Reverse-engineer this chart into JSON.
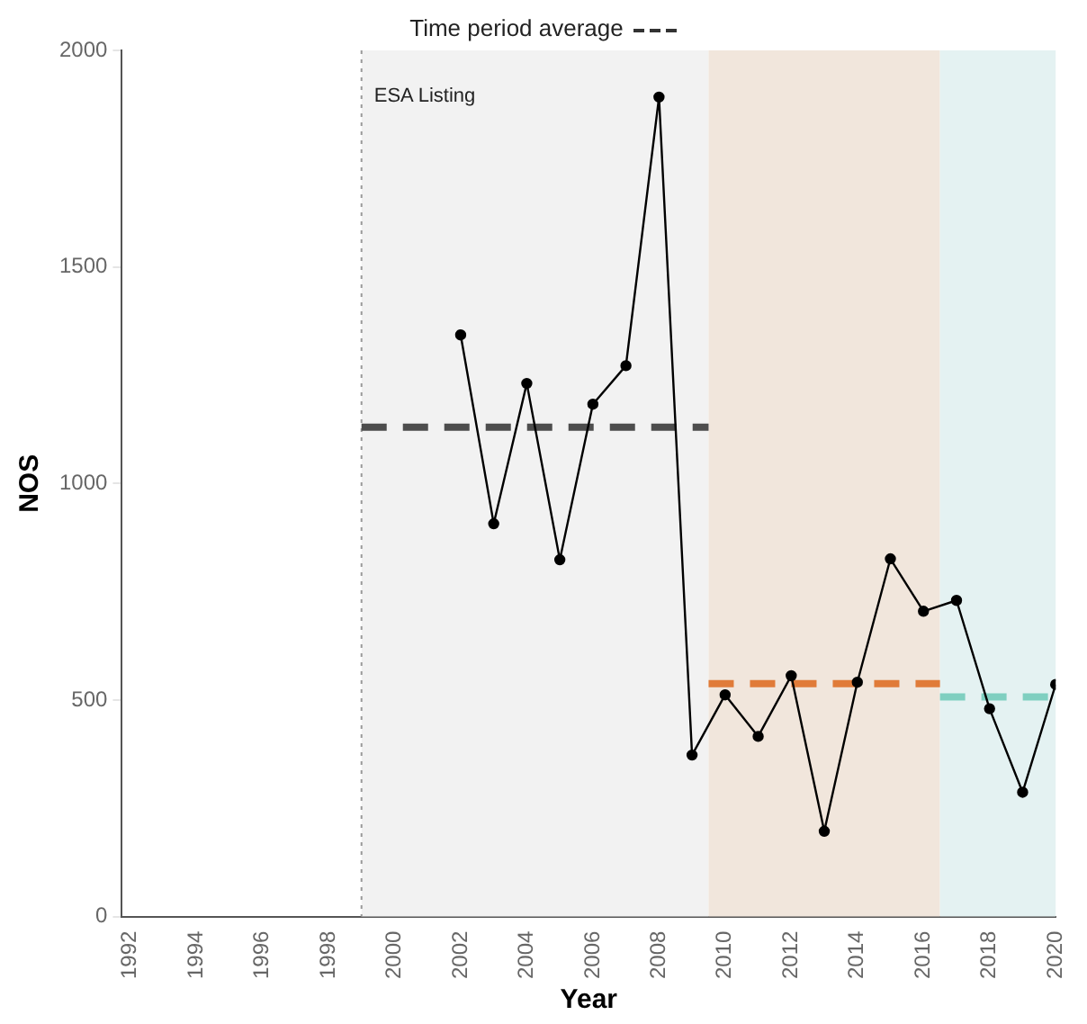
{
  "chart_data": {
    "type": "line",
    "legend_title": "Time period average",
    "xlabel": "Year",
    "ylabel": "NOS",
    "xlim": [
      1991.75,
      2020
    ],
    "xticks": [
      1992,
      1994,
      1996,
      1998,
      2000,
      2002,
      2004,
      2006,
      2008,
      2010,
      2012,
      2014,
      2016,
      2018,
      2020
    ],
    "ylim": [
      0,
      2000
    ],
    "yticks": [
      0,
      500,
      1000,
      1500,
      2000
    ],
    "grid": false,
    "marker": "circle",
    "line_style": "solid",
    "series": [
      {
        "color": "#000000",
        "x": [
          2002,
          2003,
          2004,
          2005,
          2006,
          2007,
          2008,
          2009,
          2010,
          2011,
          2012,
          2013,
          2014,
          2015,
          2016,
          2017,
          2018,
          2019,
          2020
        ],
        "values": [
          1343,
          907,
          1231,
          824,
          1183,
          1272,
          1892,
          373,
          512,
          416,
          556,
          197,
          541,
          826,
          705,
          730,
          480,
          287,
          536
        ]
      },
      {
        "color": "#4d4d4d",
        "type": "line",
        "line_style": "dashed",
        "marker": "none",
        "x": [
          1999,
          2009.5
        ],
        "values": [
          1130,
          1130
        ]
      },
      {
        "color": "#e07b39",
        "type": "line",
        "line_style": "dashed",
        "marker": "none",
        "x": [
          2009.5,
          2016.5
        ],
        "values": [
          538,
          538
        ]
      },
      {
        "color": "#7fcfc0",
        "type": "line",
        "line_style": "dashed",
        "marker": "none",
        "x": [
          2016.5,
          2020
        ],
        "values": [
          507,
          507
        ]
      }
    ],
    "bands": [
      {
        "axis": "x",
        "from": 1999,
        "to": 2009.5,
        "color": "#f2f2f2"
      },
      {
        "axis": "x",
        "from": 2009.5,
        "to": 2016.5,
        "color": "#f1e6dc"
      },
      {
        "axis": "x",
        "from": 2016.5,
        "to": 2020,
        "color": "#e4f2f2"
      }
    ],
    "ref_lines": [
      {
        "axis": "x",
        "value": 1999,
        "label": "ESA Listing",
        "color": "#999999",
        "line_style": "dotted"
      }
    ]
  }
}
